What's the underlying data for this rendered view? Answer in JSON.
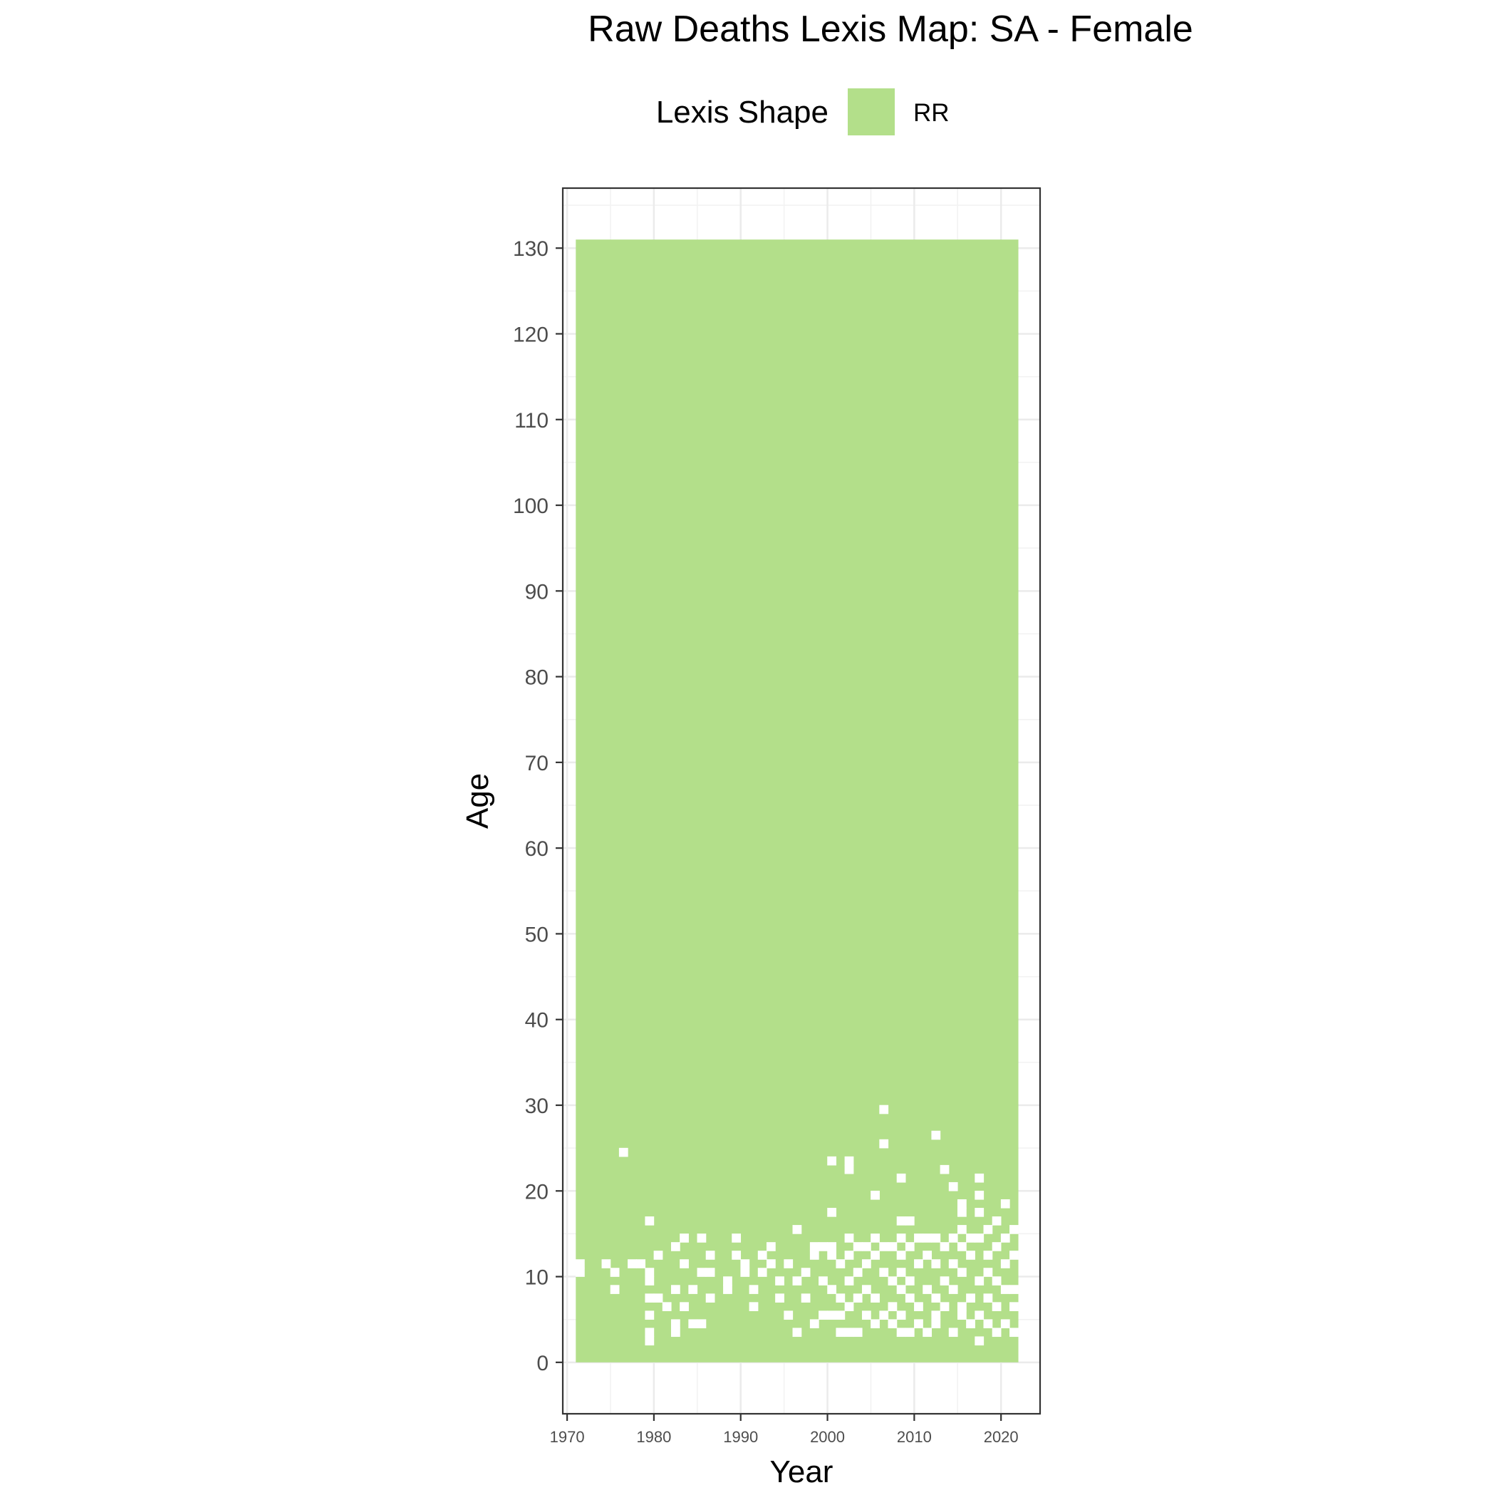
{
  "chart_data": {
    "type": "heatmap",
    "title": "Raw Deaths Lexis Map: SA - Female",
    "xlabel": "Year",
    "ylabel": "Age",
    "legend": {
      "title": "Lexis Shape",
      "placement": "top",
      "entries": [
        {
          "label": "RR",
          "color": "#b3df8a"
        }
      ]
    },
    "xlim": [
      1969.5,
      2024.5
    ],
    "ylim": [
      -6,
      137
    ],
    "x_ticks": [
      "1970",
      "1980",
      "1990",
      "2000",
      "2010",
      "2020"
    ],
    "y_ticks": [
      "0",
      "10",
      "20",
      "30",
      "40",
      "50",
      "60",
      "70",
      "80",
      "90",
      "100",
      "110",
      "120",
      "130"
    ],
    "grid": true,
    "year_range": [
      1971,
      2021
    ],
    "age_range": [
      0,
      130
    ],
    "fill_color": "#b3df8a",
    "missing_color": "#ffffff",
    "missing_cells": [
      [
        1971,
        11
      ],
      [
        1971,
        10
      ],
      [
        1974,
        11
      ],
      [
        1975,
        10
      ],
      [
        1975,
        8
      ],
      [
        1976,
        24
      ],
      [
        1977,
        11
      ],
      [
        1978,
        11
      ],
      [
        1979,
        16
      ],
      [
        1979,
        10
      ],
      [
        1979,
        9
      ],
      [
        1979,
        7
      ],
      [
        1979,
        5
      ],
      [
        1979,
        3
      ],
      [
        1979,
        2
      ],
      [
        1980,
        12
      ],
      [
        1980,
        7
      ],
      [
        1981,
        6
      ],
      [
        1982,
        13
      ],
      [
        1982,
        8
      ],
      [
        1982,
        4
      ],
      [
        1982,
        3
      ],
      [
        1983,
        14
      ],
      [
        1983,
        11
      ],
      [
        1983,
        6
      ],
      [
        1984,
        8
      ],
      [
        1984,
        4
      ],
      [
        1985,
        14
      ],
      [
        1985,
        10
      ],
      [
        1985,
        4
      ],
      [
        1986,
        12
      ],
      [
        1986,
        10
      ],
      [
        1986,
        7
      ],
      [
        1988,
        9
      ],
      [
        1988,
        8
      ],
      [
        1989,
        14
      ],
      [
        1989,
        12
      ],
      [
        1990,
        11
      ],
      [
        1990,
        10
      ],
      [
        1991,
        8
      ],
      [
        1991,
        6
      ],
      [
        1992,
        12
      ],
      [
        1992,
        10
      ],
      [
        1993,
        13
      ],
      [
        1993,
        11
      ],
      [
        1994,
        9
      ],
      [
        1994,
        7
      ],
      [
        1995,
        11
      ],
      [
        1995,
        5
      ],
      [
        1996,
        15
      ],
      [
        1996,
        9
      ],
      [
        1996,
        3
      ],
      [
        1997,
        10
      ],
      [
        1997,
        7
      ],
      [
        1998,
        13
      ],
      [
        1998,
        12
      ],
      [
        1998,
        4
      ],
      [
        1999,
        13
      ],
      [
        1999,
        9
      ],
      [
        1999,
        5
      ],
      [
        2000,
        23
      ],
      [
        2000,
        17
      ],
      [
        2000,
        13
      ],
      [
        2000,
        12
      ],
      [
        2000,
        8
      ],
      [
        2000,
        5
      ],
      [
        2001,
        11
      ],
      [
        2001,
        7
      ],
      [
        2001,
        5
      ],
      [
        2001,
        3
      ],
      [
        2002,
        23
      ],
      [
        2002,
        22
      ],
      [
        2002,
        14
      ],
      [
        2002,
        12
      ],
      [
        2002,
        9
      ],
      [
        2002,
        6
      ],
      [
        2002,
        3
      ],
      [
        2003,
        13
      ],
      [
        2003,
        10
      ],
      [
        2003,
        7
      ],
      [
        2003,
        3
      ],
      [
        2004,
        13
      ],
      [
        2004,
        11
      ],
      [
        2004,
        8
      ],
      [
        2004,
        5
      ],
      [
        2005,
        19
      ],
      [
        2005,
        14
      ],
      [
        2005,
        12
      ],
      [
        2005,
        7
      ],
      [
        2005,
        4
      ],
      [
        2006,
        29
      ],
      [
        2006,
        25
      ],
      [
        2006,
        13
      ],
      [
        2006,
        10
      ],
      [
        2006,
        5
      ],
      [
        2007,
        13
      ],
      [
        2007,
        9
      ],
      [
        2007,
        6
      ],
      [
        2007,
        4
      ],
      [
        2008,
        21
      ],
      [
        2008,
        16
      ],
      [
        2008,
        14
      ],
      [
        2008,
        12
      ],
      [
        2008,
        10
      ],
      [
        2008,
        8
      ],
      [
        2008,
        5
      ],
      [
        2008,
        3
      ],
      [
        2009,
        16
      ],
      [
        2009,
        13
      ],
      [
        2009,
        9
      ],
      [
        2009,
        7
      ],
      [
        2009,
        3
      ],
      [
        2010,
        14
      ],
      [
        2010,
        11
      ],
      [
        2010,
        6
      ],
      [
        2010,
        4
      ],
      [
        2011,
        14
      ],
      [
        2011,
        12
      ],
      [
        2011,
        8
      ],
      [
        2011,
        3
      ],
      [
        2012,
        26
      ],
      [
        2012,
        14
      ],
      [
        2012,
        11
      ],
      [
        2012,
        7
      ],
      [
        2012,
        5
      ],
      [
        2012,
        4
      ],
      [
        2013,
        22
      ],
      [
        2013,
        13
      ],
      [
        2013,
        9
      ],
      [
        2013,
        6
      ],
      [
        2014,
        20
      ],
      [
        2014,
        14
      ],
      [
        2014,
        11
      ],
      [
        2014,
        8
      ],
      [
        2014,
        3
      ],
      [
        2015,
        18
      ],
      [
        2015,
        17
      ],
      [
        2015,
        15
      ],
      [
        2015,
        13
      ],
      [
        2015,
        10
      ],
      [
        2015,
        6
      ],
      [
        2015,
        5
      ],
      [
        2016,
        14
      ],
      [
        2016,
        12
      ],
      [
        2016,
        7
      ],
      [
        2016,
        4
      ],
      [
        2017,
        21
      ],
      [
        2017,
        19
      ],
      [
        2017,
        17
      ],
      [
        2017,
        14
      ],
      [
        2017,
        9
      ],
      [
        2017,
        5
      ],
      [
        2017,
        2
      ],
      [
        2018,
        15
      ],
      [
        2018,
        12
      ],
      [
        2018,
        10
      ],
      [
        2018,
        7
      ],
      [
        2018,
        4
      ],
      [
        2019,
        16
      ],
      [
        2019,
        13
      ],
      [
        2019,
        9
      ],
      [
        2019,
        6
      ],
      [
        2019,
        3
      ],
      [
        2020,
        18
      ],
      [
        2020,
        14
      ],
      [
        2020,
        11
      ],
      [
        2020,
        8
      ],
      [
        2020,
        4
      ],
      [
        2021,
        15
      ],
      [
        2021,
        12
      ],
      [
        2021,
        8
      ],
      [
        2021,
        6
      ],
      [
        2021,
        3
      ]
    ]
  }
}
